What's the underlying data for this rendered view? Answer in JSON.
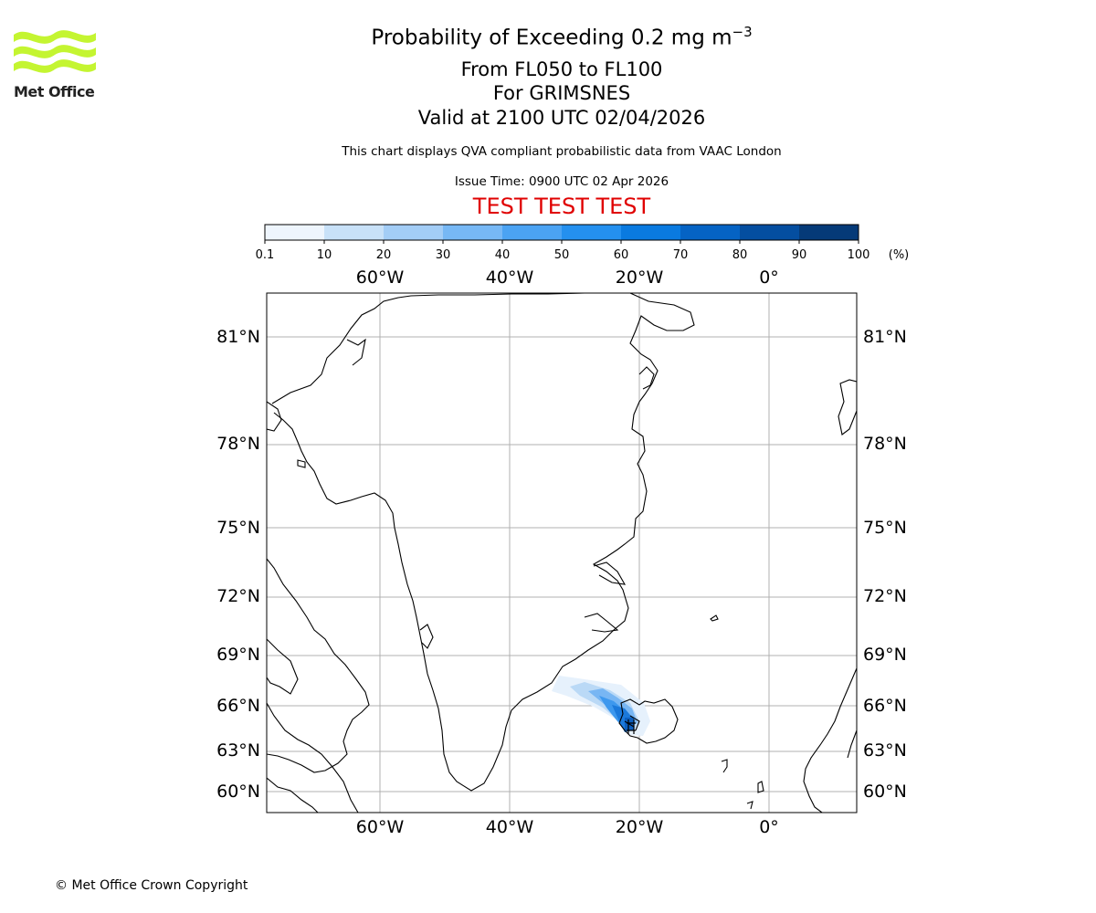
{
  "logo": {
    "brand": "Met Office",
    "color": "#c4f531"
  },
  "title": {
    "main": "Probability of Exceeding 0.2 mg m",
    "main_exponent": "−3",
    "levels": "From FL050 to FL100",
    "volcano": "For GRIMSNES",
    "valid": "Valid at 2100 UTC 02/04/2026",
    "description": "This chart displays QVA compliant probabilistic data from VAAC London",
    "issue_time": "Issue Time: 0900 UTC 02 Apr 2026",
    "test_banner": "TEST TEST TEST"
  },
  "colorbar": {
    "ticks": [
      "0.1",
      "10",
      "20",
      "30",
      "40",
      "50",
      "60",
      "70",
      "80",
      "90",
      "100"
    ],
    "unit": "(%)",
    "colors": [
      "#eef5fd",
      "#c8e1f8",
      "#a3cdf6",
      "#77b8f5",
      "#4ba3f3",
      "#2490ef",
      "#0a7ae0",
      "#0563c4",
      "#044ea0",
      "#053a78",
      "#062d5a"
    ]
  },
  "map": {
    "lon_labels": [
      "60°W",
      "40°W",
      "20°W",
      "0°"
    ],
    "lat_labels": [
      "81°N",
      "78°N",
      "75°N",
      "72°N",
      "69°N",
      "66°N",
      "63°N",
      "60°N"
    ]
  },
  "footer": {
    "copyright": "© Met Office Crown Copyright"
  }
}
